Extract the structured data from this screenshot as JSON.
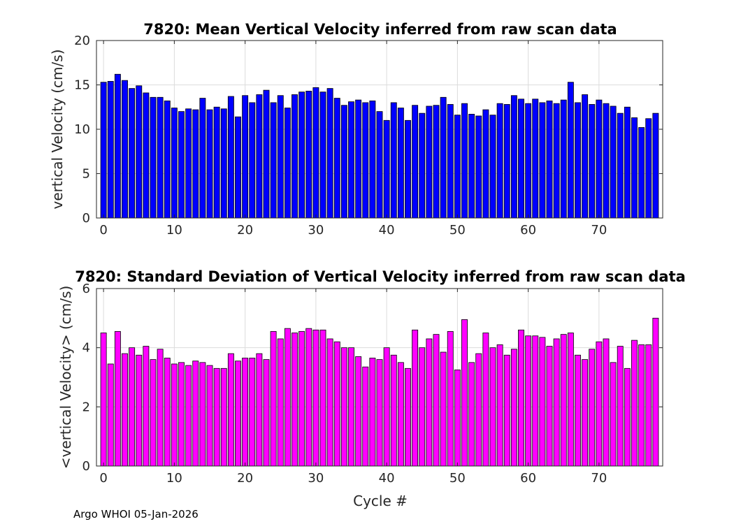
{
  "footer": "Argo WHOI 05-Jan-2026",
  "chart_data": [
    {
      "type": "bar",
      "title": "7820: Mean Vertical Velocity inferred from raw scan data",
      "xlabel": "",
      "ylabel": "vertical Velocity (cm/s)",
      "xlim": [
        -1,
        79
      ],
      "ylim": [
        0,
        20
      ],
      "xticks": [
        0,
        10,
        20,
        30,
        40,
        50,
        60,
        70
      ],
      "yticks": [
        0,
        5,
        10,
        15,
        20
      ],
      "grid": true,
      "bar_color": "#0000ff",
      "x": [
        0,
        1,
        2,
        3,
        4,
        5,
        6,
        7,
        8,
        9,
        10,
        11,
        12,
        13,
        14,
        15,
        16,
        17,
        18,
        19,
        20,
        21,
        22,
        23,
        24,
        25,
        26,
        27,
        28,
        29,
        30,
        31,
        32,
        33,
        34,
        35,
        36,
        37,
        38,
        39,
        40,
        41,
        42,
        43,
        44,
        45,
        46,
        47,
        48,
        49,
        50,
        51,
        52,
        53,
        54,
        55,
        56,
        57,
        58,
        59,
        60,
        61,
        62,
        63,
        64,
        65,
        66,
        67,
        68,
        69,
        70,
        71,
        72,
        73,
        74,
        75,
        76,
        77,
        78
      ],
      "values": [
        15.3,
        15.4,
        16.2,
        15.5,
        14.6,
        14.9,
        14.1,
        13.6,
        13.6,
        13.2,
        12.4,
        12.0,
        12.3,
        12.2,
        13.5,
        12.2,
        12.5,
        12.3,
        13.7,
        11.4,
        13.8,
        13.0,
        13.9,
        14.4,
        13.0,
        13.8,
        12.4,
        13.9,
        14.2,
        14.3,
        14.7,
        14.2,
        14.6,
        13.5,
        12.7,
        13.1,
        13.3,
        13.0,
        13.2,
        12.0,
        11.0,
        13.0,
        12.4,
        11.0,
        12.7,
        11.8,
        12.6,
        12.7,
        13.6,
        12.8,
        11.6,
        12.9,
        11.7,
        11.5,
        12.2,
        11.6,
        12.9,
        12.8,
        13.8,
        13.4,
        12.9,
        13.4,
        13.0,
        13.2,
        12.9,
        13.3,
        15.3,
        13.0,
        13.9,
        12.8,
        13.3,
        12.9,
        12.6,
        11.8,
        12.5,
        11.3,
        10.2,
        11.2,
        11.8
      ]
    },
    {
      "type": "bar",
      "title": "7820: Standard Deviation of Vertical Velocity inferred from raw scan data",
      "xlabel": "Cycle #",
      "ylabel": "<vertical Velocity> (cm/s)",
      "xlim": [
        -1,
        79
      ],
      "ylim": [
        0,
        6
      ],
      "xticks": [
        0,
        10,
        20,
        30,
        40,
        50,
        60,
        70
      ],
      "yticks": [
        0,
        2,
        4,
        6
      ],
      "grid": true,
      "bar_color": "#ff00ff",
      "x": [
        0,
        1,
        2,
        3,
        4,
        5,
        6,
        7,
        8,
        9,
        10,
        11,
        12,
        13,
        14,
        15,
        16,
        17,
        18,
        19,
        20,
        21,
        22,
        23,
        24,
        25,
        26,
        27,
        28,
        29,
        30,
        31,
        32,
        33,
        34,
        35,
        36,
        37,
        38,
        39,
        40,
        41,
        42,
        43,
        44,
        45,
        46,
        47,
        48,
        49,
        50,
        51,
        52,
        53,
        54,
        55,
        56,
        57,
        58,
        59,
        60,
        61,
        62,
        63,
        64,
        65,
        66,
        67,
        68,
        69,
        70,
        71,
        72,
        73,
        74,
        75,
        76,
        77,
        78
      ],
      "values": [
        4.5,
        3.45,
        4.55,
        3.8,
        4.0,
        3.75,
        4.05,
        3.6,
        3.95,
        3.65,
        3.45,
        3.5,
        3.4,
        3.55,
        3.5,
        3.4,
        3.3,
        3.3,
        3.8,
        3.55,
        3.65,
        3.65,
        3.8,
        3.6,
        4.55,
        4.3,
        4.65,
        4.5,
        4.55,
        4.65,
        4.6,
        4.6,
        4.3,
        4.2,
        4.0,
        4.0,
        3.7,
        3.35,
        3.65,
        3.6,
        4.0,
        3.75,
        3.5,
        3.3,
        4.6,
        4.0,
        4.3,
        4.45,
        3.85,
        4.55,
        3.25,
        4.95,
        3.5,
        3.8,
        4.5,
        4.0,
        4.1,
        3.75,
        3.95,
        4.6,
        4.4,
        4.4,
        4.35,
        4.05,
        4.3,
        4.45,
        4.5,
        3.75,
        3.6,
        3.95,
        4.2,
        4.3,
        3.5,
        4.05,
        3.3,
        4.25,
        4.1,
        4.1,
        5.0
      ]
    }
  ]
}
